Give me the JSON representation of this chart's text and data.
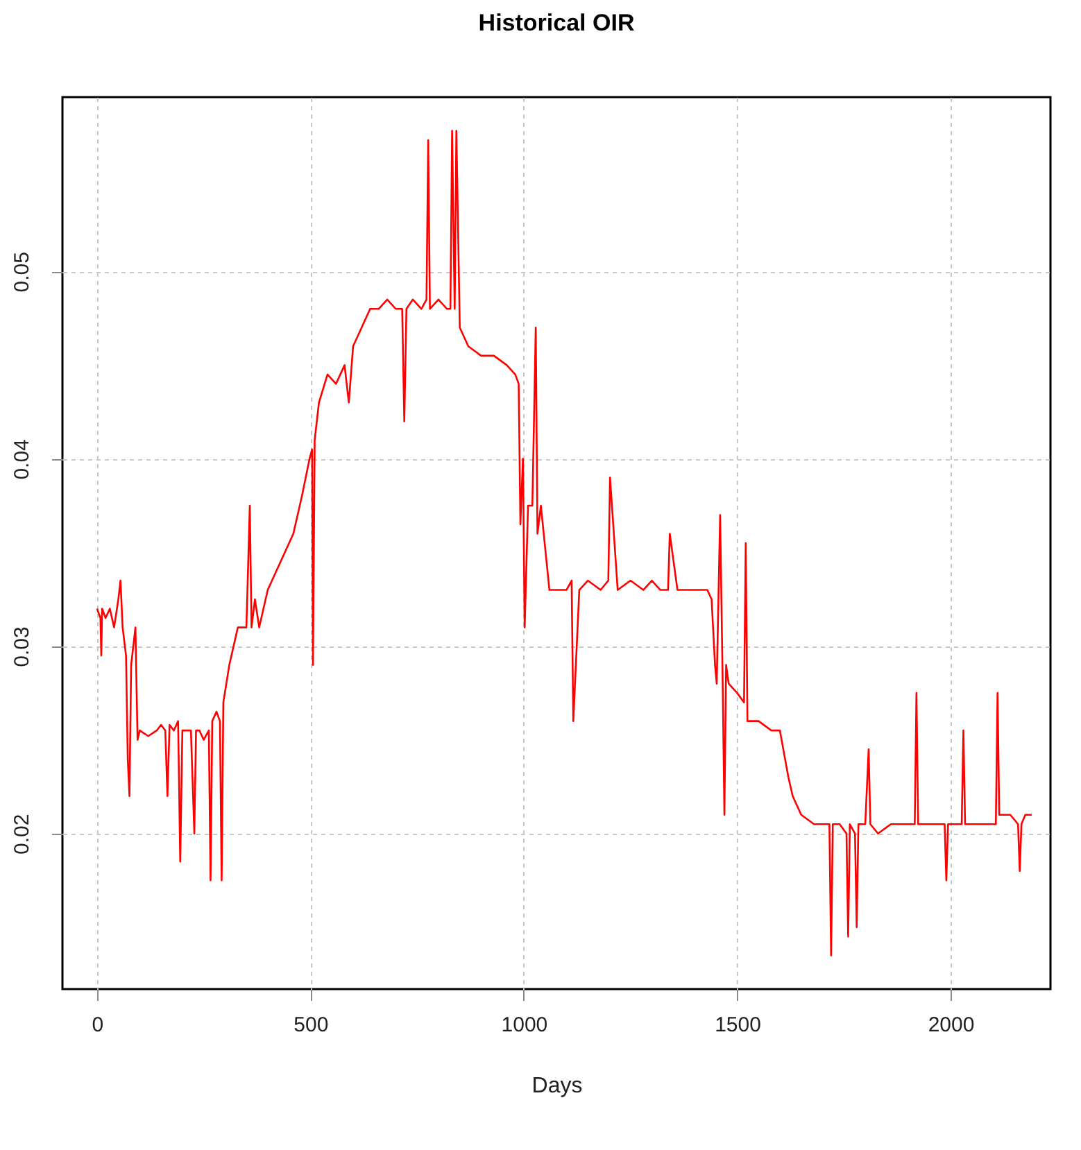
{
  "chart_data": {
    "type": "line",
    "title": "Historical OIR",
    "xlabel": "Days",
    "x": [
      0,
      8,
      10,
      12,
      20,
      30,
      40,
      50,
      55,
      60,
      68,
      72,
      76,
      80,
      90,
      95,
      100,
      120,
      140,
      150,
      160,
      165,
      170,
      180,
      190,
      195,
      200,
      210,
      220,
      228,
      232,
      240,
      250,
      262,
      266,
      270,
      280,
      288,
      292,
      296,
      310,
      330,
      350,
      358,
      362,
      370,
      380,
      400,
      420,
      440,
      460,
      480,
      498,
      504,
      506,
      510,
      520,
      540,
      560,
      580,
      590,
      600,
      620,
      640,
      660,
      680,
      700,
      715,
      720,
      725,
      740,
      760,
      772,
      776,
      780,
      800,
      820,
      828,
      832,
      838,
      842,
      850,
      870,
      900,
      930,
      960,
      980,
      988,
      992,
      998,
      1002,
      1010,
      1020,
      1028,
      1032,
      1040,
      1060,
      1080,
      1100,
      1112,
      1116,
      1130,
      1150,
      1180,
      1198,
      1202,
      1220,
      1250,
      1280,
      1300,
      1320,
      1338,
      1342,
      1360,
      1400,
      1430,
      1440,
      1448,
      1452,
      1460,
      1466,
      1470,
      1474,
      1480,
      1500,
      1516,
      1520,
      1524,
      1550,
      1580,
      1600,
      1620,
      1630,
      1650,
      1680,
      1700,
      1716,
      1720,
      1724,
      1740,
      1756,
      1760,
      1764,
      1776,
      1780,
      1784,
      1800,
      1808,
      1812,
      1830,
      1860,
      1900,
      1916,
      1920,
      1924,
      1950,
      1986,
      1990,
      1994,
      2010,
      2026,
      2030,
      2034,
      2060,
      2090,
      2106,
      2110,
      2114,
      2140,
      2158,
      2162,
      2166,
      2175,
      2190
    ],
    "values": [
      0.032,
      0.0315,
      0.0295,
      0.032,
      0.0315,
      0.032,
      0.031,
      0.0325,
      0.0335,
      0.031,
      0.0295,
      0.024,
      0.022,
      0.029,
      0.031,
      0.025,
      0.0255,
      0.0252,
      0.0255,
      0.0258,
      0.0255,
      0.022,
      0.0258,
      0.0255,
      0.026,
      0.0185,
      0.0255,
      0.0255,
      0.0255,
      0.02,
      0.0255,
      0.0255,
      0.025,
      0.0255,
      0.0175,
      0.026,
      0.0265,
      0.026,
      0.0175,
      0.027,
      0.029,
      0.031,
      0.031,
      0.0375,
      0.031,
      0.0325,
      0.031,
      0.033,
      0.034,
      0.035,
      0.036,
      0.038,
      0.04,
      0.0405,
      0.029,
      0.041,
      0.043,
      0.0445,
      0.044,
      0.045,
      0.043,
      0.046,
      0.047,
      0.048,
      0.048,
      0.0485,
      0.048,
      0.048,
      0.042,
      0.048,
      0.0485,
      0.048,
      0.0485,
      0.057,
      0.048,
      0.0485,
      0.048,
      0.048,
      0.0575,
      0.048,
      0.0575,
      0.047,
      0.046,
      0.0455,
      0.0455,
      0.045,
      0.0445,
      0.044,
      0.0365,
      0.04,
      0.031,
      0.0375,
      0.0375,
      0.047,
      0.036,
      0.0375,
      0.033,
      0.033,
      0.033,
      0.0335,
      0.026,
      0.033,
      0.0335,
      0.033,
      0.0335,
      0.039,
      0.033,
      0.0335,
      0.033,
      0.0335,
      0.033,
      0.033,
      0.036,
      0.033,
      0.033,
      0.033,
      0.0325,
      0.029,
      0.028,
      0.037,
      0.028,
      0.021,
      0.029,
      0.028,
      0.0275,
      0.027,
      0.0355,
      0.026,
      0.026,
      0.0255,
      0.0255,
      0.023,
      0.022,
      0.021,
      0.0205,
      0.0205,
      0.0205,
      0.0135,
      0.0205,
      0.0205,
      0.02,
      0.0145,
      0.0205,
      0.02,
      0.015,
      0.0205,
      0.0205,
      0.0245,
      0.0205,
      0.02,
      0.0205,
      0.0205,
      0.0205,
      0.0275,
      0.0205,
      0.0205,
      0.0205,
      0.0175,
      0.0205,
      0.0205,
      0.0205,
      0.0255,
      0.0205,
      0.0205,
      0.0205,
      0.0205,
      0.0275,
      0.021,
      0.021,
      0.0205,
      0.018,
      0.0205,
      0.021,
      0.021
    ],
    "color": "#ff0000",
    "xlim": [
      -81,
      2234
    ],
    "ylim": [
      0.0117,
      0.0593
    ],
    "xticks": [
      0,
      500,
      1000,
      1500,
      2000
    ],
    "yticks": [
      0.02,
      0.03,
      0.04,
      0.05
    ],
    "grid": true
  }
}
